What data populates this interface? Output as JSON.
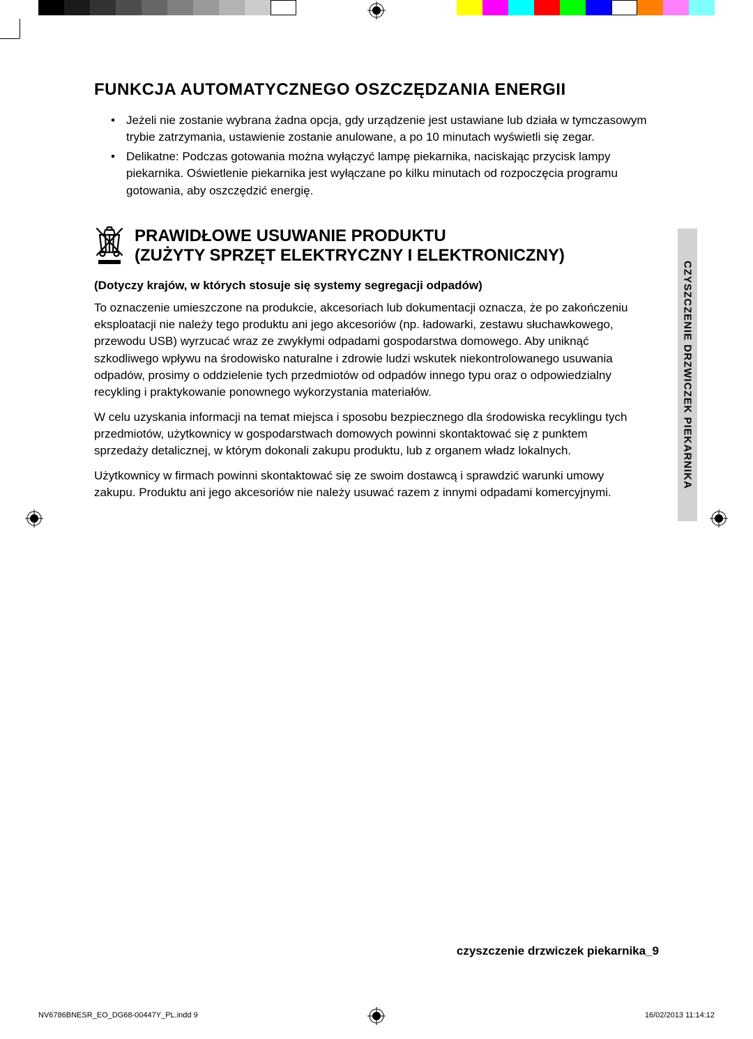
{
  "colorbar": {
    "grays": [
      "#000000",
      "#1a1a1a",
      "#333333",
      "#4d4d4d",
      "#666666",
      "#808080",
      "#999999",
      "#b3b3b3",
      "#cccccc",
      "#ffffff"
    ],
    "gray_width": 37,
    "colors": [
      "#ffff00",
      "#ff00ff",
      "#00ffff",
      "#ff0000",
      "#00ff00",
      "#0000ff",
      "#ffffff",
      "#ff8000",
      "#ff80ff",
      "#80ffff"
    ]
  },
  "section1": {
    "heading": "FUNKCJA AUTOMATYCZNEGO OSZCZĘDZANIA ENERGII",
    "bullets": [
      "Jeżeli nie zostanie wybrana żadna opcja, gdy urządzenie jest ustawiane lub działa w tymczasowym trybie zatrzymania, ustawienie zostanie anulowane, a po 10 minutach wyświetli się zegar.",
      "Delikatne: Podczas gotowania można wyłączyć lampę piekarnika, naciskając przycisk lampy piekarnika. Oświetlenie piekarnika jest wyłączane po kilku minutach od rozpoczęcia programu gotowania, aby oszczędzić energię."
    ]
  },
  "section2": {
    "headingLine1": "PRAWIDŁOWE USUWANIE PRODUKTU",
    "headingLine2": "(ZUŻYTY SPRZĘT ELEKTRYCZNY I ELEKTRONICZNY)",
    "subheading": "(Dotyczy krajów, w których stosuje się systemy segregacji odpadów)",
    "paragraphs": [
      "To oznaczenie umieszczone na produkcie, akcesoriach lub dokumentacji oznacza, że po zakończeniu eksploatacji nie należy tego produktu ani jego akcesoriów (np. ładowarki, zestawu słuchawkowego, przewodu USB) wyrzucać wraz ze zwykłymi odpadami gospodarstwa domowego. Aby uniknąć szkodliwego wpływu na środowisko naturalne i zdrowie ludzi wskutek niekontrolowanego usuwania odpadów, prosimy o oddzielenie tych przedmiotów od odpadów innego typu oraz o odpowiedzialny recykling i praktykowanie ponownego wykorzystania materiałów.",
      "W celu uzyskania informacji na temat miejsca i sposobu bezpiecznego dla środowiska recyklingu tych przedmiotów, użytkownicy w gospodarstwach domowych powinni skontaktować się z punktem sprzedaży detalicznej, w którym dokonali zakupu produktu, lub z organem władz lokalnych.",
      "Użytkownicy w firmach powinni skontaktować się ze swoim dostawcą i sprawdzić warunki umowy zakupu. Produktu ani jego akcesoriów nie należy usuwać razem z innymi odpadami komercyjnymi."
    ]
  },
  "sideTab": {
    "text": "CZYSZCZENIE DRZWICZEK PIEKARNIKA"
  },
  "footer": {
    "sectionLabel": "czyszczenie drzwiczek piekarnika_9",
    "printLeft": "NV6786BNESR_EO_DG68-00447Y_PL.indd   9",
    "printRight": "16/02/2013   11:14:12"
  },
  "styling": {
    "page_bg": "#ffffff",
    "text_color": "#000000",
    "sidetab_bg": "#d2d2d0",
    "heading_fontsize": 24,
    "body_fontsize": 17,
    "sidetab_fontsize": 15,
    "footer_fontsize": 11
  }
}
